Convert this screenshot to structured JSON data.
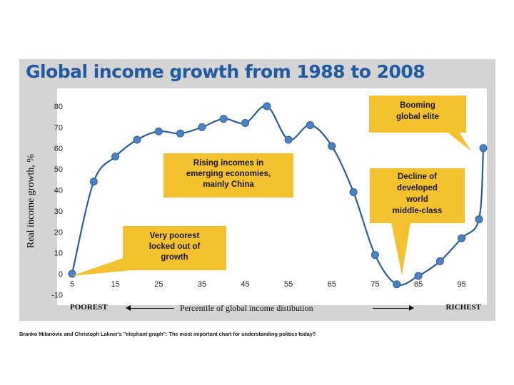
{
  "chart_data": {
    "type": "line",
    "title": "Global income growth from 1988 to 2008",
    "xlabel": "Percentile of global income distibution",
    "ylabel": "Real income growth, %",
    "x_left_label": "POOREST",
    "x_right_label": "RICHEST",
    "xlim": [
      5,
      100
    ],
    "ylim": [
      -10,
      80
    ],
    "x_ticks": [
      5,
      15,
      25,
      35,
      45,
      55,
      65,
      75,
      85,
      95
    ],
    "y_ticks": [
      -10,
      0,
      10,
      20,
      30,
      40,
      50,
      60,
      70,
      80
    ],
    "x_tick_labels": [
      "5",
      "15",
      "25",
      "35",
      "45",
      "55",
      "65",
      "75",
      "85",
      "95"
    ],
    "y_tick_labels": [
      "-10",
      "0",
      "10",
      "20",
      "30",
      "40",
      "50",
      "60",
      "70",
      "80"
    ],
    "x": [
      5,
      10,
      15,
      20,
      25,
      30,
      35,
      40,
      45,
      50,
      55,
      60,
      65,
      70,
      75,
      80,
      85,
      90,
      95,
      99,
      100
    ],
    "y": [
      0,
      44,
      56,
      64,
      68,
      67,
      70,
      74,
      72,
      80,
      64,
      71,
      61,
      39,
      9,
      -5,
      -1,
      6,
      17,
      26,
      60
    ],
    "annotations": [
      {
        "text": "Very poorest locked out of growth",
        "lines": [
          "Very poorest",
          "locked out of",
          "growth"
        ]
      },
      {
        "text": "Rising incomes in emerging economies, mainly China",
        "lines": [
          "Rising incomes in",
          "emerging economies,",
          "mainly China"
        ]
      },
      {
        "text": "Booming global elite",
        "lines": [
          "Booming",
          "global elite"
        ]
      },
      {
        "text": "Decline of developed world middle-class",
        "lines": [
          "Decline of",
          "developed",
          "world",
          "middle-class"
        ]
      }
    ],
    "colors": {
      "line": "#2c5e9b",
      "marker": "#4a83c4",
      "callout": "#f3c12d",
      "plot_bg": "#ffffff",
      "panel_bg": "#d4d4d4"
    }
  },
  "caption": "Branko Milanovic and Christoph Lakner's \"elephant graph\": The most important chart for understanding politics today?"
}
